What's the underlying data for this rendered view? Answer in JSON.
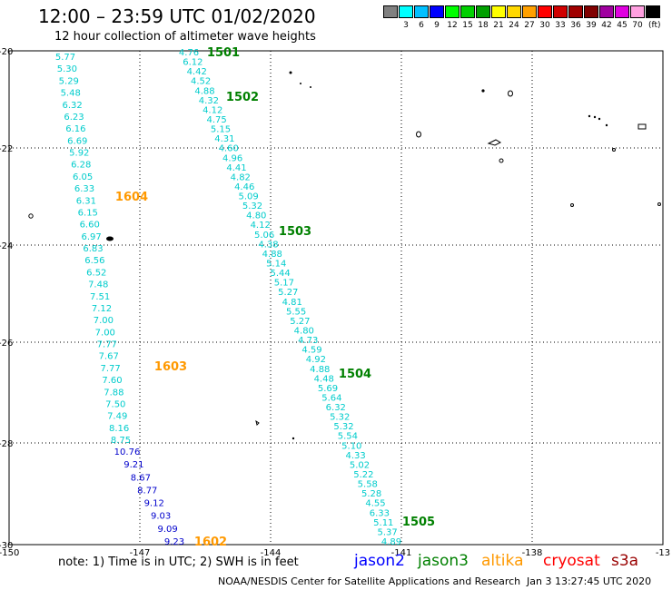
{
  "header": {
    "title": "12:00 – 23:59 UTC 01/02/2020",
    "subtitle": "12 hour collection of altimeter wave heights"
  },
  "scale": {
    "unit": "(ft)",
    "items": [
      {
        "label": "",
        "color": "#808080"
      },
      {
        "label": "3",
        "color": "#00ffff"
      },
      {
        "label": "6",
        "color": "#00c0ff"
      },
      {
        "label": "9",
        "color": "#0000ff"
      },
      {
        "label": "12",
        "color": "#00ff00"
      },
      {
        "label": "15",
        "color": "#00d000"
      },
      {
        "label": "18",
        "color": "#00a000"
      },
      {
        "label": "21",
        "color": "#ffff00"
      },
      {
        "label": "24",
        "color": "#ffd800"
      },
      {
        "label": "27",
        "color": "#ffa000"
      },
      {
        "label": "30",
        "color": "#ff0000"
      },
      {
        "label": "33",
        "color": "#d00000"
      },
      {
        "label": "36",
        "color": "#a00000"
      },
      {
        "label": "39",
        "color": "#800000"
      },
      {
        "label": "42",
        "color": "#a000a0"
      },
      {
        "label": "45",
        "color": "#e000e0"
      },
      {
        "label": "70",
        "color": "#ffa0e0"
      },
      {
        "label": "",
        "color": "#000000"
      }
    ]
  },
  "map": {
    "lon_ticks": [
      "-150",
      "-147",
      "-144",
      "-141",
      "-138",
      "-13"
    ],
    "lat_ticks": [
      "-20",
      "-22",
      "-24",
      "-26",
      "-28",
      "-30"
    ],
    "tracks": [
      {
        "color": "#00cccc",
        "values": [
          "5.77",
          "5.30",
          "5.29",
          "5.48",
          "6.32",
          "6.23",
          "6.16",
          "6.69",
          "5.92",
          "6.28",
          "6.05",
          "6.33",
          "6.31",
          "6.15",
          "6.60",
          "6.97",
          "6.83",
          "6.56",
          "6.52",
          "7.48",
          "7.51",
          "7.12",
          "7.00",
          "7.00",
          "7.77",
          "7.67",
          "7.77",
          "7.60",
          "7.88",
          "7.50",
          "7.49",
          "8.16",
          "8.75"
        ]
      },
      {
        "color": "#0000cc",
        "values": [
          "10.76",
          "9.21",
          "8.67",
          "8.77",
          "9.12",
          "9.03",
          "9.09",
          "9.23"
        ]
      },
      {
        "color": "#00cccc",
        "values": [
          "4.76",
          "6.12",
          "4.42",
          "4.52",
          "4.88",
          "4.32",
          "4.12",
          "4.75",
          "5.15",
          "4.31",
          "4.60",
          "4.96",
          "4.41",
          "4.82",
          "4.46",
          "5.09",
          "5.32",
          "4.80",
          "4.12",
          "5.06",
          "4.38",
          "4.88",
          "5.14",
          "5.44",
          "5.17",
          "5.27",
          "4.81",
          "5.55",
          "5.27",
          "4.80",
          "4.73",
          "4.59",
          "4.92",
          "4.88",
          "4.48",
          "5.69",
          "5.64",
          "6.32",
          "5.32",
          "5.32",
          "5.54",
          "5.10",
          "4.33",
          "5.02",
          "5.22",
          "5.58",
          "5.28",
          "4.55",
          "6.33",
          "5.11",
          "5.37",
          "4.89"
        ]
      }
    ],
    "track_labels": [
      {
        "text": "1501",
        "color": "#008000"
      },
      {
        "text": "1502",
        "color": "#008000"
      },
      {
        "text": "1503",
        "color": "#008000"
      },
      {
        "text": "1504",
        "color": "#008000"
      },
      {
        "text": "1505",
        "color": "#008000"
      },
      {
        "text": "1604",
        "color": "#ff9900"
      },
      {
        "text": "1603",
        "color": "#ff9900"
      },
      {
        "text": "1602",
        "color": "#ff9900"
      }
    ]
  },
  "footer": {
    "note": "note: 1) Time is in UTC; 2) SWH is in feet",
    "legend": [
      {
        "text": "jason2",
        "color": "#0000ff"
      },
      {
        "text": "jason3",
        "color": "#008000"
      },
      {
        "text": "altika",
        "color": "#ff9900"
      },
      {
        "text": "cryosat",
        "color": "#ff0000"
      },
      {
        "text": "s3a",
        "color": "#990000"
      }
    ],
    "credit": "NOAA/NESDIS Center for Satellite Applications and Research",
    "timestamp": "Jan  3 13:27:45 UTC 2020"
  }
}
